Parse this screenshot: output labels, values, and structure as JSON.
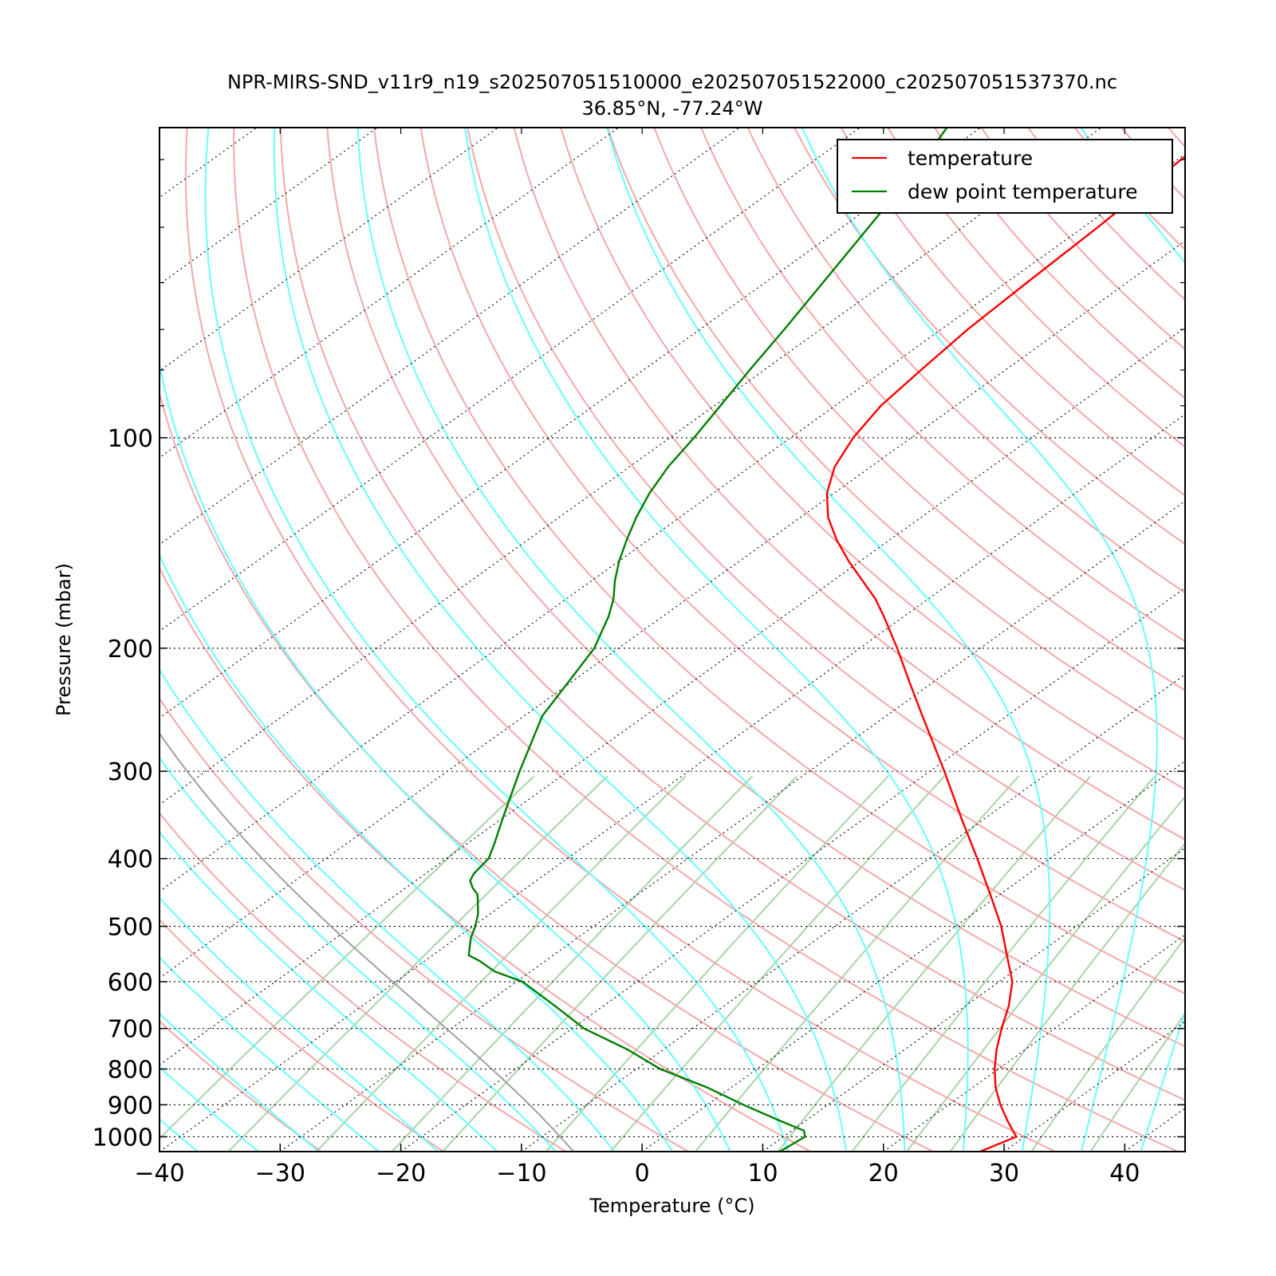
{
  "chart_data": {
    "type": "line",
    "subtype": "skew-T log-P diagram",
    "title": "NPR-MIRS-SND_v11r9_n19_s202507051510000_e202507051522000_c202507051537370.nc",
    "subtitle": "36.85°N, -77.24°W",
    "xlabel": "Temperature (°C)",
    "ylabel": "Pressure (mbar)",
    "xlim": [
      -40,
      45
    ],
    "ylim": [
      1050,
      36
    ],
    "y_scale": "log",
    "skew_factor": 35,
    "x_ticks": [
      -40,
      -30,
      -20,
      -10,
      0,
      10,
      20,
      30,
      40
    ],
    "x_tick_labels": [
      "−40",
      "−30",
      "−20",
      "−10",
      "0",
      "10",
      "20",
      "30",
      "40"
    ],
    "y_ticks": [
      100,
      200,
      300,
      400,
      500,
      600,
      700,
      800,
      900,
      1000
    ],
    "y_tick_labels": [
      "100",
      "200",
      "300",
      "400",
      "500",
      "600",
      "700",
      "800",
      "900",
      "1000"
    ],
    "grid": "dotted horizontal isobars and skewed isotherms",
    "legend_position": "top-right",
    "legend": [
      "temperature",
      "dew point temperature"
    ],
    "colors": {
      "temperature": "#ff0000",
      "dew_point": "#007f00",
      "dry_adiabat": "#f4a8a8",
      "moist_adiabat": "#66ffff",
      "mixing_ratio": "#a9d3a9",
      "lcl_parcel": "#a0a0a0"
    },
    "series": [
      {
        "name": "temperature",
        "pressure": [
          1050,
          1000,
          950,
          900,
          850,
          800,
          750,
          700,
          650,
          600,
          550,
          500,
          450,
          400,
          350,
          300,
          250,
          225,
          200,
          180,
          170,
          160,
          150,
          140,
          130,
          120,
          110,
          100,
          90,
          80,
          70,
          60,
          50,
          40,
          36
        ],
        "temperature": [
          28.0,
          29.3,
          26.8,
          24.3,
          21.9,
          19.7,
          17.6,
          15.6,
          13.6,
          11.1,
          7.6,
          3.8,
          -0.8,
          -6.0,
          -12.0,
          -18.8,
          -27.0,
          -31.7,
          -36.9,
          -41.7,
          -44.4,
          -47.6,
          -51.0,
          -54.4,
          -57.7,
          -60.6,
          -63.0,
          -64.8,
          -66.2,
          -67.0,
          -67.8,
          -68.3,
          -68.8,
          -69.7,
          -70.0
        ]
      },
      {
        "name": "dew point temperature",
        "pressure": [
          1050,
          1000,
          980,
          950,
          900,
          850,
          800,
          750,
          700,
          650,
          600,
          580,
          560,
          550,
          520,
          500,
          480,
          460,
          450,
          440,
          430,
          420,
          400,
          380,
          350,
          300,
          250,
          220,
          200,
          180,
          170,
          160,
          150,
          140,
          130,
          120,
          110,
          100,
          90,
          80,
          70,
          60,
          50,
          40,
          36
        ],
        "dewpoint": [
          11.4,
          11.8,
          11.0,
          8.0,
          3.0,
          -2.0,
          -8.0,
          -13.0,
          -19.0,
          -24.0,
          -29.5,
          -33.0,
          -35.5,
          -37.0,
          -38.8,
          -39.8,
          -41.0,
          -42.5,
          -43.3,
          -44.5,
          -45.5,
          -46.0,
          -46.5,
          -47.8,
          -50.0,
          -54.0,
          -58.5,
          -60.5,
          -62.0,
          -64.5,
          -66.1,
          -68.1,
          -70.0,
          -71.8,
          -73.6,
          -75.3,
          -76.8,
          -78.0,
          -79.5,
          -81.2,
          -83.0,
          -85.2,
          -87.8,
          -91.0,
          -92.8
        ]
      }
    ]
  }
}
